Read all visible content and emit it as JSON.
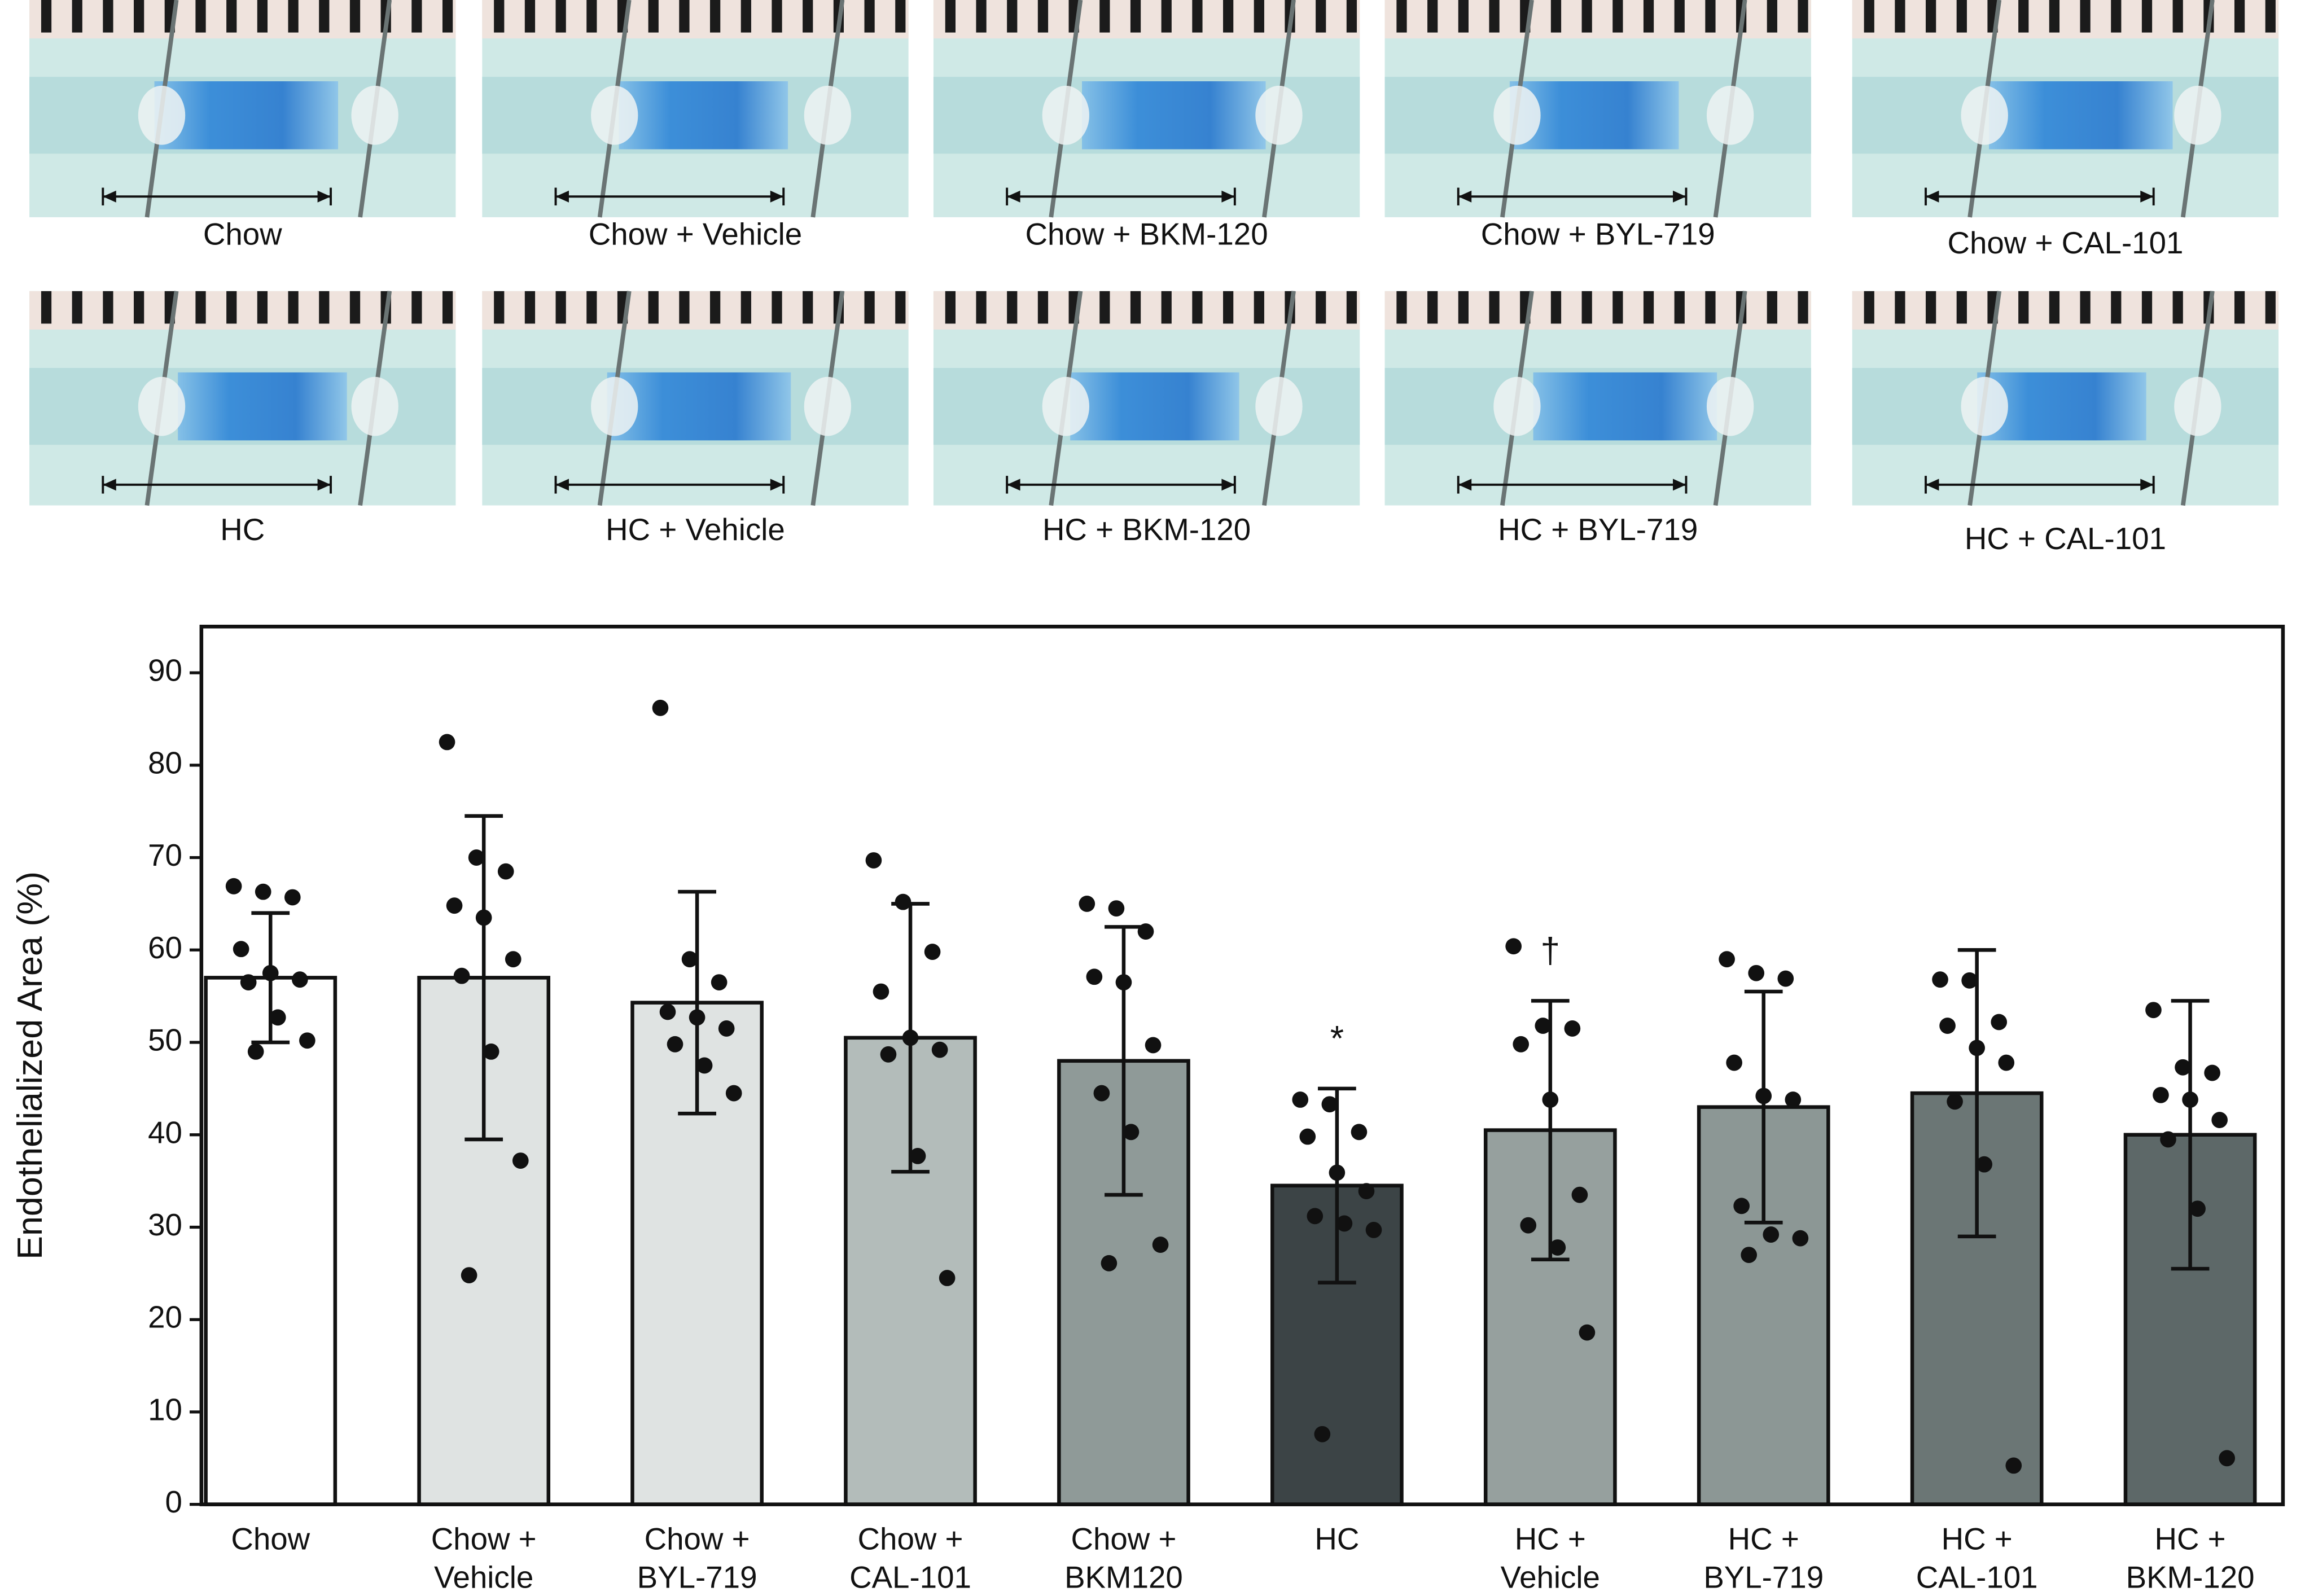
{
  "panels": [
    {
      "label": "Chow"
    },
    {
      "label": "Chow + Vehicle"
    },
    {
      "label": "Chow + BKM-120"
    },
    {
      "label": "Chow + BYL-719"
    },
    {
      "label": "Chow + CAL-101"
    },
    {
      "label": "HC"
    },
    {
      "label": "HC + Vehicle"
    },
    {
      "label": "HC + BKM-120"
    },
    {
      "label": "HC + BYL-719"
    },
    {
      "label": "HC + CAL-101"
    }
  ],
  "chart_data": {
    "type": "bar",
    "y_label": "Endothelialized Area (%)",
    "categories": [
      [
        "Chow"
      ],
      [
        "Chow +",
        "Vehicle"
      ],
      [
        "Chow +",
        "BYL-719"
      ],
      [
        "Chow +",
        "CAL-101"
      ],
      [
        "Chow +",
        "BKM120"
      ],
      [
        "HC"
      ],
      [
        "HC +",
        "Vehicle"
      ],
      [
        "HC +",
        "BYL-719"
      ],
      [
        "HC +",
        "CAL-101"
      ],
      [
        "HC +",
        "BKM-120"
      ]
    ],
    "values": [
      57,
      57,
      54.3,
      50.5,
      48,
      34.5,
      40.5,
      43,
      44.5,
      40
    ],
    "errors": [
      7,
      17.5,
      12,
      14.5,
      14.5,
      10.5,
      14,
      12.5,
      15.5,
      14.5
    ],
    "colors": [
      "#ffffff",
      "#dfe3e2",
      "#dfe3e2",
      "#b3bcba",
      "#8f9a98",
      "#3c4446",
      "#96a09e",
      "#8c9795",
      "#6b7675",
      "#5d6868"
    ],
    "points": [
      [
        66.9,
        66.3,
        65.7,
        60.1,
        57.5,
        56.8,
        56.5,
        52.7,
        50.2,
        49
      ],
      [
        82.5,
        70,
        68.5,
        64.8,
        63.5,
        59,
        57.2,
        49,
        37.2,
        24.8
      ],
      [
        86.2,
        59,
        56.5,
        53.3,
        52.7,
        51.5,
        49.8,
        47.5,
        44.5
      ],
      [
        69.7,
        65.2,
        59.8,
        55.5,
        50.5,
        49.2,
        48.7,
        37.7,
        24.5
      ],
      [
        65,
        64.5,
        62,
        57.1,
        56.5,
        49.7,
        44.5,
        40.3,
        28.1,
        26.1
      ],
      [
        43.8,
        43.3,
        40.3,
        39.8,
        35.9,
        33.9,
        31.2,
        30.4,
        29.7,
        7.6
      ],
      [
        60.4,
        51.8,
        51.5,
        49.8,
        43.8,
        33.5,
        30.2,
        27.8,
        18.6
      ],
      [
        59,
        57.5,
        56.9,
        47.8,
        44.2,
        43.8,
        32.3,
        29.2,
        28.8,
        27
      ],
      [
        56.8,
        56.7,
        52.2,
        51.8,
        49.4,
        47.8,
        43.6,
        36.8,
        4.2
      ],
      [
        53.5,
        47.3,
        46.7,
        44.3,
        43.8,
        41.6,
        39.5,
        32,
        5
      ]
    ],
    "annotations": [
      {
        "index": 5,
        "text": "*"
      },
      {
        "index": 6,
        "text": "†"
      }
    ],
    "ylim": [
      0,
      95
    ],
    "yticks": [
      0,
      10,
      20,
      30,
      40,
      50,
      60,
      70,
      80,
      90
    ]
  }
}
